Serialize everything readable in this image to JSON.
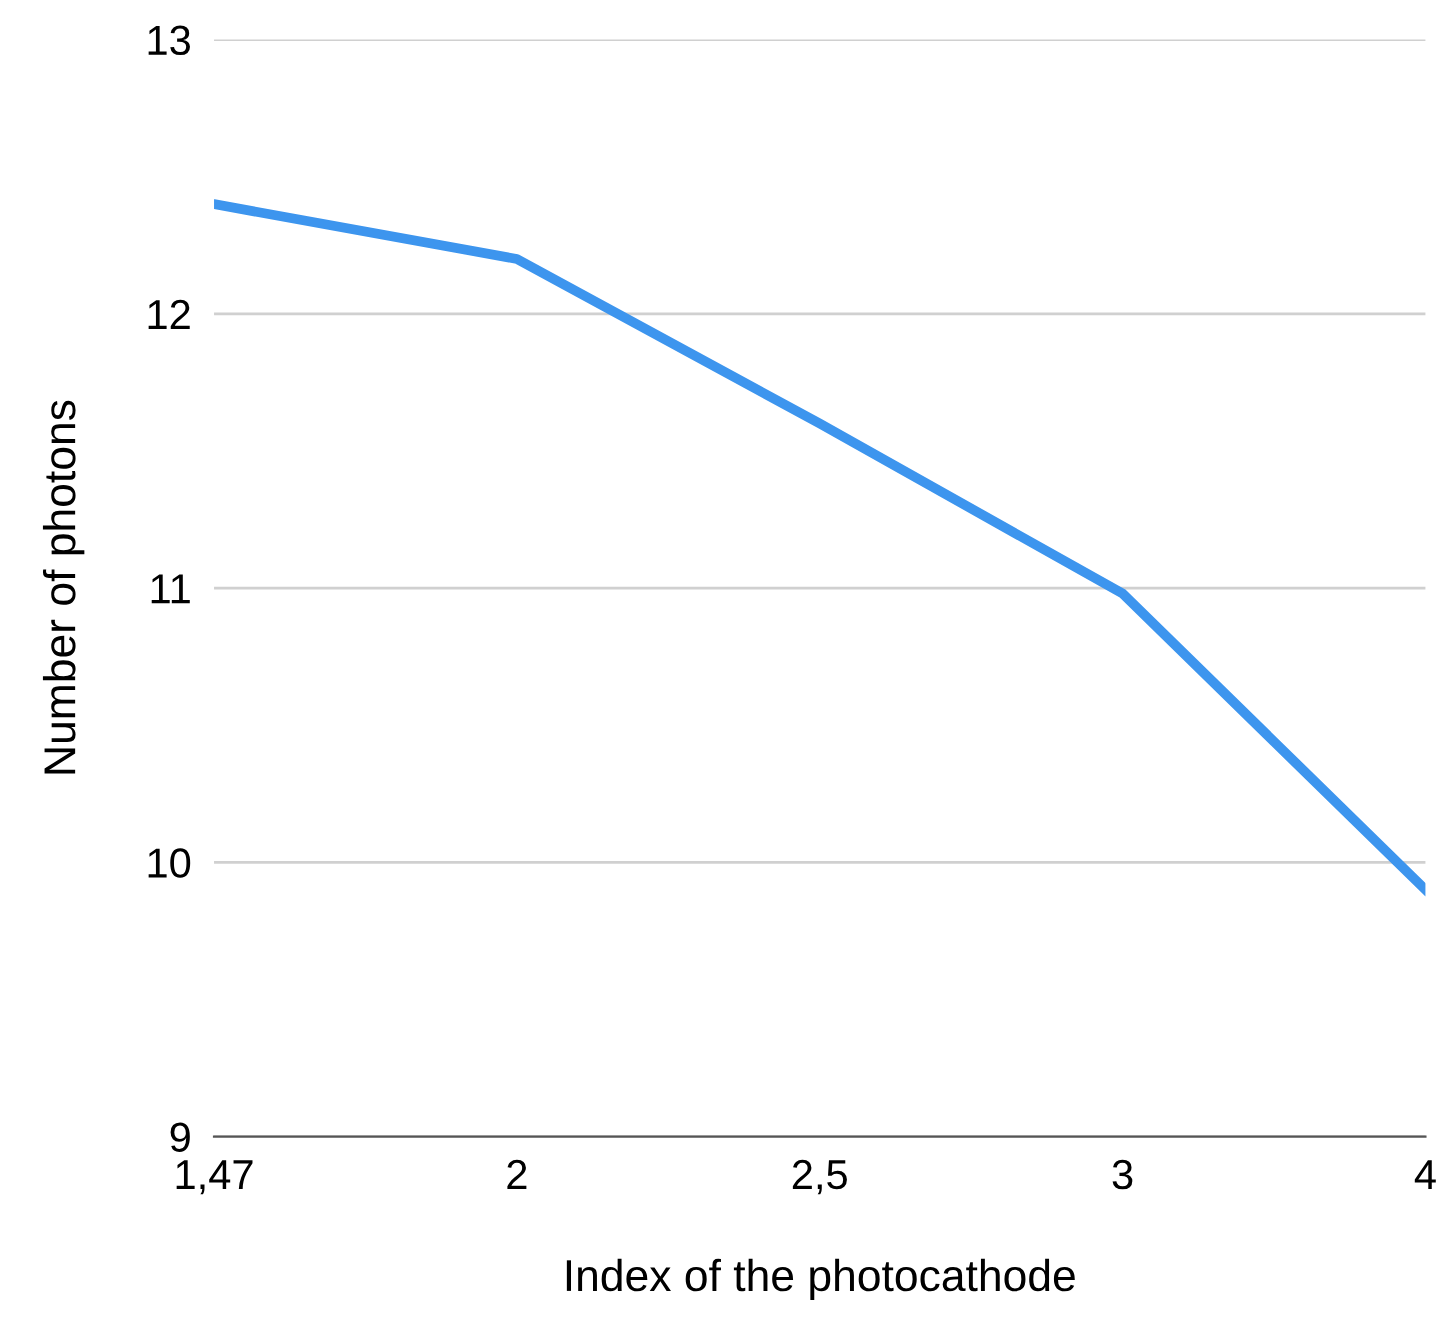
{
  "chart_data": {
    "type": "line",
    "xlabel": "Index of the photocathode",
    "ylabel": "Number of photons",
    "categories": [
      "1,47",
      "2",
      "2,5",
      "3",
      "4"
    ],
    "series": [
      {
        "color": "#3d95ee",
        "values": [
          12.4,
          12.2,
          11.6,
          10.98,
          9.9
        ]
      }
    ],
    "ylim": [
      9,
      13
    ],
    "yticks": [
      9,
      10,
      11,
      12,
      13
    ],
    "grid": "y",
    "legend": false,
    "marker": "none",
    "line_style": "solid"
  }
}
